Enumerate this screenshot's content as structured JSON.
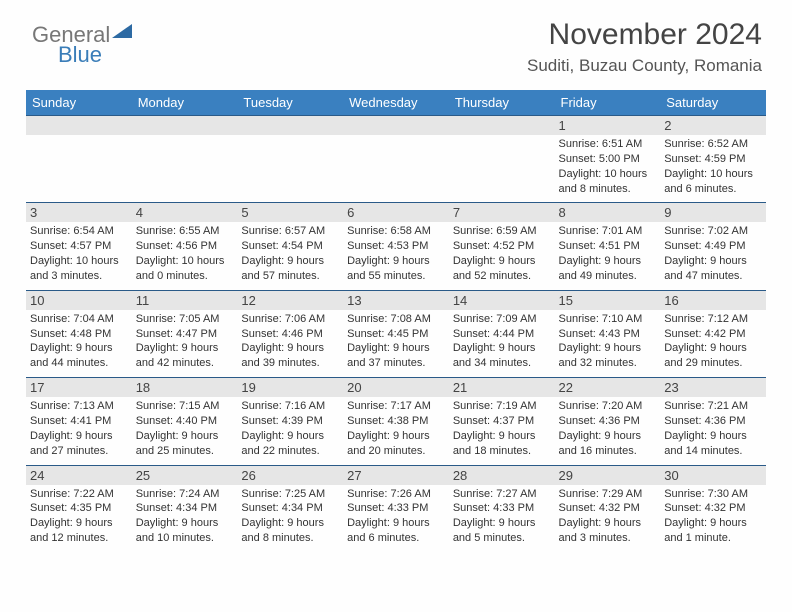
{
  "brand": {
    "part1": "General",
    "part2": "Blue"
  },
  "header": {
    "month_title": "November 2024",
    "location": "Suditi, Buzau County, Romania"
  },
  "colors": {
    "header_bg": "#3a80c0",
    "rule": "#2a5a88",
    "daynum_bg": "#e6e6e6"
  },
  "days_of_week": [
    "Sunday",
    "Monday",
    "Tuesday",
    "Wednesday",
    "Thursday",
    "Friday",
    "Saturday"
  ],
  "weeks": [
    [
      null,
      null,
      null,
      null,
      null,
      {
        "n": "1",
        "sr": "6:51 AM",
        "ss": "5:00 PM",
        "dl": "10 hours and 8 minutes."
      },
      {
        "n": "2",
        "sr": "6:52 AM",
        "ss": "4:59 PM",
        "dl": "10 hours and 6 minutes."
      }
    ],
    [
      {
        "n": "3",
        "sr": "6:54 AM",
        "ss": "4:57 PM",
        "dl": "10 hours and 3 minutes."
      },
      {
        "n": "4",
        "sr": "6:55 AM",
        "ss": "4:56 PM",
        "dl": "10 hours and 0 minutes."
      },
      {
        "n": "5",
        "sr": "6:57 AM",
        "ss": "4:54 PM",
        "dl": "9 hours and 57 minutes."
      },
      {
        "n": "6",
        "sr": "6:58 AM",
        "ss": "4:53 PM",
        "dl": "9 hours and 55 minutes."
      },
      {
        "n": "7",
        "sr": "6:59 AM",
        "ss": "4:52 PM",
        "dl": "9 hours and 52 minutes."
      },
      {
        "n": "8",
        "sr": "7:01 AM",
        "ss": "4:51 PM",
        "dl": "9 hours and 49 minutes."
      },
      {
        "n": "9",
        "sr": "7:02 AM",
        "ss": "4:49 PM",
        "dl": "9 hours and 47 minutes."
      }
    ],
    [
      {
        "n": "10",
        "sr": "7:04 AM",
        "ss": "4:48 PM",
        "dl": "9 hours and 44 minutes."
      },
      {
        "n": "11",
        "sr": "7:05 AM",
        "ss": "4:47 PM",
        "dl": "9 hours and 42 minutes."
      },
      {
        "n": "12",
        "sr": "7:06 AM",
        "ss": "4:46 PM",
        "dl": "9 hours and 39 minutes."
      },
      {
        "n": "13",
        "sr": "7:08 AM",
        "ss": "4:45 PM",
        "dl": "9 hours and 37 minutes."
      },
      {
        "n": "14",
        "sr": "7:09 AM",
        "ss": "4:44 PM",
        "dl": "9 hours and 34 minutes."
      },
      {
        "n": "15",
        "sr": "7:10 AM",
        "ss": "4:43 PM",
        "dl": "9 hours and 32 minutes."
      },
      {
        "n": "16",
        "sr": "7:12 AM",
        "ss": "4:42 PM",
        "dl": "9 hours and 29 minutes."
      }
    ],
    [
      {
        "n": "17",
        "sr": "7:13 AM",
        "ss": "4:41 PM",
        "dl": "9 hours and 27 minutes."
      },
      {
        "n": "18",
        "sr": "7:15 AM",
        "ss": "4:40 PM",
        "dl": "9 hours and 25 minutes."
      },
      {
        "n": "19",
        "sr": "7:16 AM",
        "ss": "4:39 PM",
        "dl": "9 hours and 22 minutes."
      },
      {
        "n": "20",
        "sr": "7:17 AM",
        "ss": "4:38 PM",
        "dl": "9 hours and 20 minutes."
      },
      {
        "n": "21",
        "sr": "7:19 AM",
        "ss": "4:37 PM",
        "dl": "9 hours and 18 minutes."
      },
      {
        "n": "22",
        "sr": "7:20 AM",
        "ss": "4:36 PM",
        "dl": "9 hours and 16 minutes."
      },
      {
        "n": "23",
        "sr": "7:21 AM",
        "ss": "4:36 PM",
        "dl": "9 hours and 14 minutes."
      }
    ],
    [
      {
        "n": "24",
        "sr": "7:22 AM",
        "ss": "4:35 PM",
        "dl": "9 hours and 12 minutes."
      },
      {
        "n": "25",
        "sr": "7:24 AM",
        "ss": "4:34 PM",
        "dl": "9 hours and 10 minutes."
      },
      {
        "n": "26",
        "sr": "7:25 AM",
        "ss": "4:34 PM",
        "dl": "9 hours and 8 minutes."
      },
      {
        "n": "27",
        "sr": "7:26 AM",
        "ss": "4:33 PM",
        "dl": "9 hours and 6 minutes."
      },
      {
        "n": "28",
        "sr": "7:27 AM",
        "ss": "4:33 PM",
        "dl": "9 hours and 5 minutes."
      },
      {
        "n": "29",
        "sr": "7:29 AM",
        "ss": "4:32 PM",
        "dl": "9 hours and 3 minutes."
      },
      {
        "n": "30",
        "sr": "7:30 AM",
        "ss": "4:32 PM",
        "dl": "9 hours and 1 minute."
      }
    ]
  ],
  "labels": {
    "sunrise": "Sunrise: ",
    "sunset": "Sunset: ",
    "daylight": "Daylight: "
  }
}
